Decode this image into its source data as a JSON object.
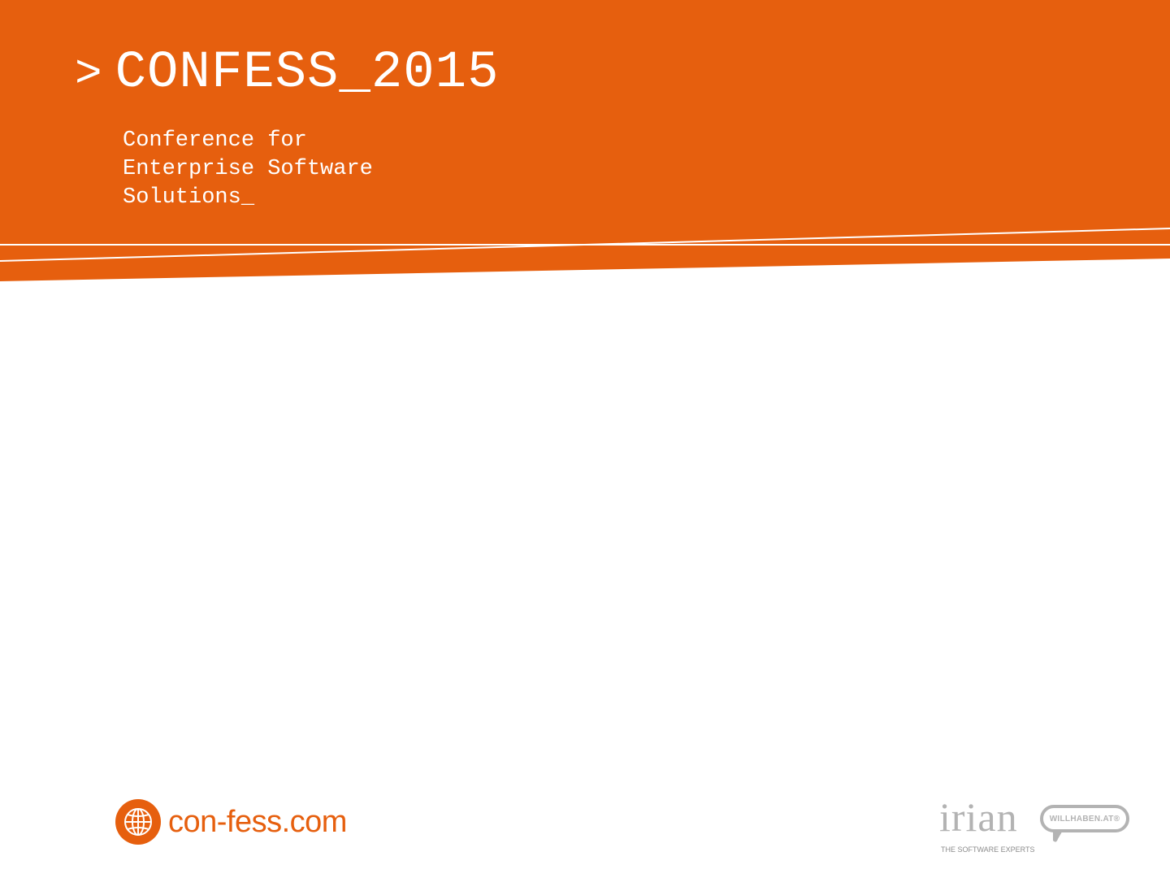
{
  "header": {
    "prompt_symbol": ">",
    "title": "CONFESS_2015",
    "subtitle_lines": [
      "Conference for",
      "Enterprise Software",
      "Solutions_"
    ]
  },
  "footer": {
    "website": "con-fess.com",
    "website_icon": "globe-icon"
  },
  "sponsors": {
    "irian": {
      "name": "irian",
      "tagline": "THE SOFTWARE EXPERTS"
    },
    "willhaben": {
      "name": "WILLHABEN.AT®"
    }
  },
  "colors": {
    "brand_orange": "#e65f0e",
    "white": "#ffffff",
    "sponsor_gray": "#b3b3b3",
    "tagline_gray": "#8c8c8c"
  }
}
